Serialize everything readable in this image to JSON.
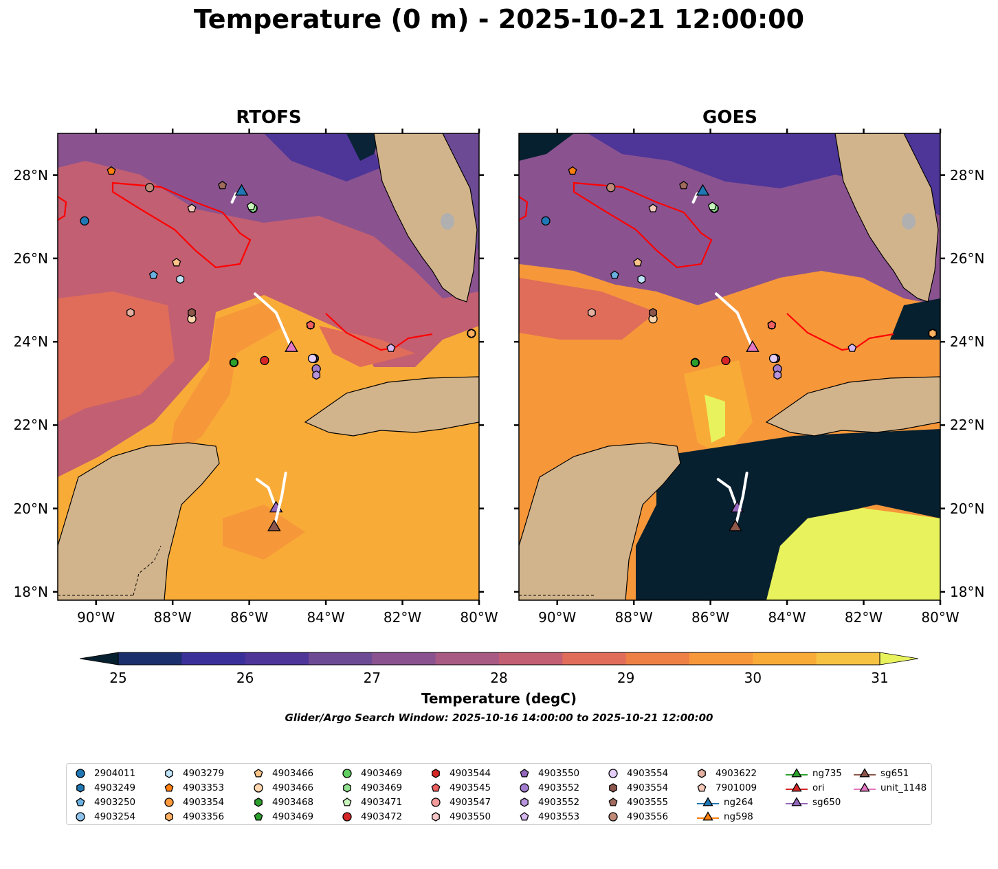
{
  "title": "Temperature (0 m) - 2025-10-21 12:00:00",
  "panels": [
    {
      "title": "RTOFS",
      "source": "model"
    },
    {
      "title": "GOES",
      "source": "satellite"
    }
  ],
  "axes": {
    "x_ticks": [
      "90°W",
      "88°W",
      "86°W",
      "84°W",
      "82°W",
      "80°W"
    ],
    "y_ticks": [
      "28°N",
      "26°N",
      "24°N",
      "22°N",
      "20°N",
      "18°N"
    ],
    "lon_range": [
      -91.0,
      -80.0
    ],
    "lat_range": [
      17.8,
      29.0
    ]
  },
  "colorbar": {
    "label": "Temperature (degC)",
    "ticks": [
      "25",
      "26",
      "27",
      "28",
      "29",
      "30",
      "31"
    ],
    "vmin": 25,
    "vmax": 31,
    "step": 0.5,
    "extend": "both",
    "colors": [
      "#0a2336",
      "#1a2f6b",
      "#3b2f9a",
      "#4e3598",
      "#6d4a94",
      "#8a5390",
      "#a85a84",
      "#c35f72",
      "#e06d5a",
      "#ee8046",
      "#f6973a",
      "#f9ab38",
      "#f6c244"
    ],
    "over_color": "#e8f25c",
    "under_color": "#07202f"
  },
  "search_window": "Glider/Argo Search Window: 2025-10-16 14:00:00 to 2025-10-21 12:00:00",
  "chart_data": {
    "type": "map",
    "variable": "Temperature (0 m)",
    "unit": "degC",
    "argo_floats": [
      {
        "id": "2904011",
        "lon": -90.3,
        "lat": 26.9,
        "marker": "circle",
        "color": "#1f77b4"
      },
      {
        "id": "4903249",
        "lon": -86.4,
        "lat": 23.5,
        "marker": "hexagon",
        "color": "#1f77b4"
      },
      {
        "id": "4903250",
        "lon": -88.5,
        "lat": 25.6,
        "marker": "pentagon",
        "color": "#6ab0e0"
      },
      {
        "id": "4903254",
        "lon": -86.4,
        "lat": 23.5,
        "marker": "circle",
        "color": "#8fc2ea"
      },
      {
        "id": "4903279",
        "lon": -87.8,
        "lat": 25.5,
        "marker": "hexagon",
        "color": "#bfe3f7"
      },
      {
        "id": "4903353",
        "lon": -89.6,
        "lat": 28.1,
        "marker": "pentagon",
        "color": "#ff7f0e"
      },
      {
        "id": "4903354",
        "lon": -80.2,
        "lat": 24.2,
        "marker": "circle",
        "color": "#ff9a3c"
      },
      {
        "id": "4903356",
        "lon": -80.2,
        "lat": 24.2,
        "marker": "hexagon",
        "color": "#ffb060"
      },
      {
        "id": "4903466",
        "lon": -87.9,
        "lat": 25.9,
        "marker": "pentagon",
        "color": "#ffc488"
      },
      {
        "id": "4903466",
        "lon": -87.5,
        "lat": 24.55,
        "marker": "circle",
        "color": "#ffd6ad"
      },
      {
        "id": "4903468",
        "lon": -86.4,
        "lat": 23.5,
        "marker": "hexagon",
        "color": "#2ca02c"
      },
      {
        "id": "4903469",
        "lon": -85.9,
        "lat": 27.2,
        "marker": "pentagon",
        "color": "#2ca02c"
      },
      {
        "id": "4903469",
        "lon": -85.9,
        "lat": 27.2,
        "marker": "circle",
        "color": "#5fcf5f"
      },
      {
        "id": "4903469",
        "lon": -85.9,
        "lat": 27.2,
        "marker": "hexagon",
        "color": "#8fe08f"
      },
      {
        "id": "4903471",
        "lon": -85.95,
        "lat": 27.25,
        "marker": "pentagon",
        "color": "#c8f5bc"
      },
      {
        "id": "4903472",
        "lon": -85.6,
        "lat": 23.55,
        "marker": "circle",
        "color": "#d62728"
      },
      {
        "id": "4903544",
        "lon": -84.4,
        "lat": 24.4,
        "marker": "hexagon",
        "color": "#d62728"
      },
      {
        "id": "4903545",
        "lon": -84.4,
        "lat": 24.4,
        "marker": "pentagon",
        "color": "#ee6060"
      },
      {
        "id": "4903547",
        "lon": -84.3,
        "lat": 23.6,
        "marker": "circle",
        "color": "#f39a9a"
      },
      {
        "id": "4903550",
        "lon": -84.3,
        "lat": 23.6,
        "marker": "hexagon",
        "color": "#f7c6c6"
      },
      {
        "id": "4903550",
        "lon": -84.3,
        "lat": 23.6,
        "marker": "pentagon",
        "color": "#9467bd"
      },
      {
        "id": "4903552",
        "lon": -84.25,
        "lat": 23.35,
        "marker": "circle",
        "color": "#a27ccc"
      },
      {
        "id": "4903552",
        "lon": -84.25,
        "lat": 23.2,
        "marker": "hexagon",
        "color": "#b894dc"
      },
      {
        "id": "4903553",
        "lon": -82.3,
        "lat": 23.85,
        "marker": "pentagon",
        "color": "#d6b8f0"
      },
      {
        "id": "4903554",
        "lon": -84.35,
        "lat": 23.6,
        "marker": "circle",
        "color": "#e4cef7"
      },
      {
        "id": "4903554",
        "lon": -87.5,
        "lat": 24.7,
        "marker": "hexagon",
        "color": "#8c564b"
      },
      {
        "id": "4903555",
        "lon": -86.7,
        "lat": 27.75,
        "marker": "pentagon",
        "color": "#a06a5c"
      },
      {
        "id": "4903556",
        "lon": -88.6,
        "lat": 27.7,
        "marker": "circle",
        "color": "#c08a78"
      },
      {
        "id": "4903622",
        "lon": -89.1,
        "lat": 24.7,
        "marker": "hexagon",
        "color": "#e3b0a0"
      },
      {
        "id": "7901009",
        "lon": -87.5,
        "lat": 27.2,
        "marker": "pentagon",
        "color": "#f2c9b8"
      }
    ],
    "gliders": [
      {
        "id": "ng264",
        "color": "#1f77b4",
        "track": [
          [
            -86.45,
            27.35
          ],
          [
            -86.35,
            27.55
          ],
          [
            -86.2,
            27.6
          ]
        ]
      },
      {
        "id": "ng598",
        "color": "#ff7f0e",
        "track": []
      },
      {
        "id": "ng735",
        "color": "#2ca02c",
        "track": []
      },
      {
        "id": "ori",
        "color": "#d62728",
        "track": []
      },
      {
        "id": "sg650",
        "color": "#9467bd",
        "track": [
          [
            -85.8,
            20.7
          ],
          [
            -85.5,
            20.5
          ],
          [
            -85.3,
            20.0
          ]
        ]
      },
      {
        "id": "sg651",
        "color": "#8c564b",
        "track": [
          [
            -85.05,
            20.85
          ],
          [
            -85.15,
            20.3
          ],
          [
            -85.35,
            19.55
          ]
        ]
      },
      {
        "id": "unit_1148",
        "color": "#e377c2",
        "track": [
          [
            -85.85,
            25.15
          ],
          [
            -85.3,
            24.7
          ],
          [
            -84.9,
            23.85
          ]
        ]
      }
    ],
    "contours": [
      {
        "label": "model contour",
        "color": "#ff0000"
      }
    ]
  },
  "legend": {
    "items": [
      {
        "label": "2904011",
        "marker": "circle",
        "color": "#1f77b4",
        "line": false
      },
      {
        "label": "4903249",
        "marker": "hexagon",
        "color": "#1f77b4",
        "line": false
      },
      {
        "label": "4903250",
        "marker": "pentagon",
        "color": "#6ab0e0",
        "line": false
      },
      {
        "label": "4903254",
        "marker": "circle",
        "color": "#8fc2ea",
        "line": false
      },
      {
        "label": "4903279",
        "marker": "hexagon",
        "color": "#bfe3f7",
        "line": false
      },
      {
        "label": "4903353",
        "marker": "pentagon",
        "color": "#ff7f0e",
        "line": false
      },
      {
        "label": "4903354",
        "marker": "circle",
        "color": "#ff9a3c",
        "line": false
      },
      {
        "label": "4903356",
        "marker": "hexagon",
        "color": "#ffb060",
        "line": false
      },
      {
        "label": "4903466",
        "marker": "pentagon",
        "color": "#ffc488",
        "line": false
      },
      {
        "label": "4903466",
        "marker": "circle",
        "color": "#ffd6ad",
        "line": false
      },
      {
        "label": "4903468",
        "marker": "hexagon",
        "color": "#2ca02c",
        "line": false
      },
      {
        "label": "4903469",
        "marker": "pentagon",
        "color": "#2ca02c",
        "line": false
      },
      {
        "label": "4903469",
        "marker": "circle",
        "color": "#5fcf5f",
        "line": false
      },
      {
        "label": "4903469",
        "marker": "hexagon",
        "color": "#8fe08f",
        "line": false
      },
      {
        "label": "4903471",
        "marker": "pentagon",
        "color": "#c8f5bc",
        "line": false
      },
      {
        "label": "4903472",
        "marker": "circle",
        "color": "#d62728",
        "line": false
      },
      {
        "label": "4903544",
        "marker": "hexagon",
        "color": "#d62728",
        "line": false
      },
      {
        "label": "4903545",
        "marker": "pentagon",
        "color": "#ee6060",
        "line": false
      },
      {
        "label": "4903547",
        "marker": "circle",
        "color": "#f39a9a",
        "line": false
      },
      {
        "label": "4903550",
        "marker": "hexagon",
        "color": "#f7c6c6",
        "line": false
      },
      {
        "label": "4903550",
        "marker": "pentagon",
        "color": "#9467bd",
        "line": false
      },
      {
        "label": "4903552",
        "marker": "circle",
        "color": "#a27ccc",
        "line": false
      },
      {
        "label": "4903552",
        "marker": "hexagon",
        "color": "#b894dc",
        "line": false
      },
      {
        "label": "4903553",
        "marker": "pentagon",
        "color": "#d6b8f0",
        "line": false
      },
      {
        "label": "4903554",
        "marker": "circle",
        "color": "#e4cef7",
        "line": false
      },
      {
        "label": "4903554",
        "marker": "hexagon",
        "color": "#8c564b",
        "line": false
      },
      {
        "label": "4903555",
        "marker": "pentagon",
        "color": "#a06a5c",
        "line": false
      },
      {
        "label": "4903556",
        "marker": "circle",
        "color": "#c08a78",
        "line": false
      },
      {
        "label": "4903622",
        "marker": "hexagon",
        "color": "#e3b0a0",
        "line": false
      },
      {
        "label": "7901009",
        "marker": "pentagon",
        "color": "#f2c9b8",
        "line": false
      },
      {
        "label": "ng264",
        "marker": "triangle",
        "color": "#1f77b4",
        "line": true
      },
      {
        "label": "ng598",
        "marker": "triangle",
        "color": "#ff7f0e",
        "line": true
      },
      {
        "label": "ng735",
        "marker": "triangle",
        "color": "#2ca02c",
        "line": true
      },
      {
        "label": "ori",
        "marker": "triangle",
        "color": "#d62728",
        "line": true
      },
      {
        "label": "sg650",
        "marker": "triangle",
        "color": "#9467bd",
        "line": true
      },
      {
        "label": "sg651",
        "marker": "triangle",
        "color": "#8c564b",
        "line": true
      },
      {
        "label": "unit_1148",
        "marker": "triangle",
        "color": "#e377c2",
        "line": true
      }
    ]
  },
  "colors": {
    "land": "#d2b48c",
    "lake": "#b0b0b0",
    "shallow_water": "#9ec3e6",
    "contour": "#ff0000",
    "track": "#ffffff"
  }
}
